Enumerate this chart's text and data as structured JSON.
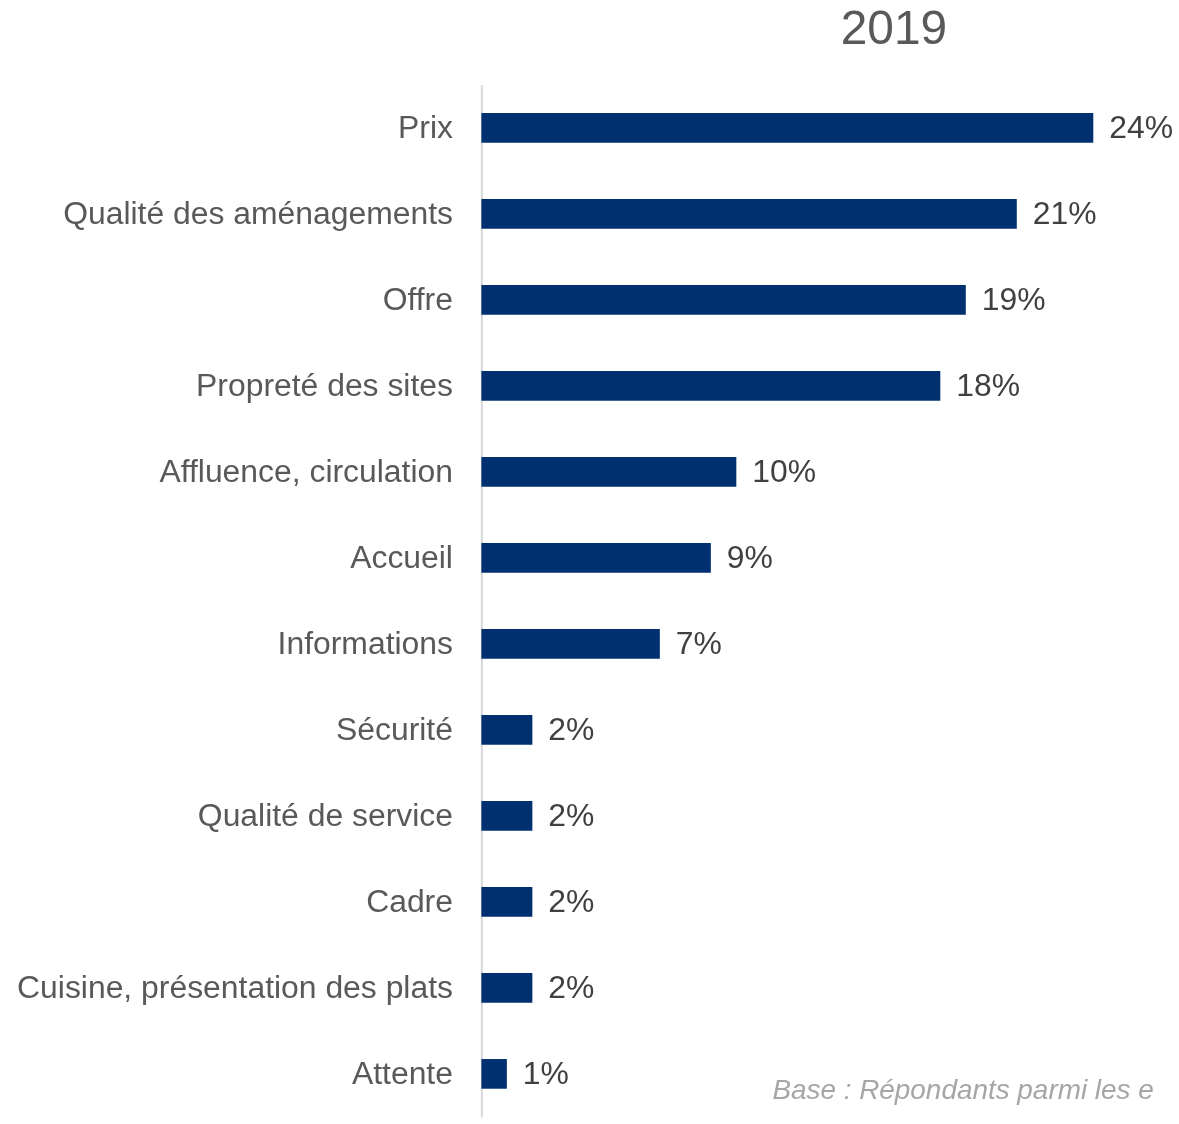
{
  "chart_data": {
    "type": "bar",
    "orientation": "horizontal",
    "title": "2019",
    "categories": [
      "Prix",
      "Qualité des aménagements",
      "Offre",
      "Propreté des sites",
      "Affluence, circulation",
      "Accueil",
      "Informations",
      "Sécurité",
      "Qualité de service",
      "Cadre",
      "Cuisine, présentation des plats",
      "Attente"
    ],
    "values": [
      24,
      21,
      19,
      18,
      10,
      9,
      7,
      2,
      2,
      2,
      2,
      1
    ],
    "value_labels": [
      "24%",
      "21%",
      "19%",
      "18%",
      "10%",
      "9%",
      "7%",
      "2%",
      "2%",
      "2%",
      "2%",
      "1%"
    ],
    "color": "#003070",
    "annotations": [
      "Base :  Répondants parmi les e"
    ]
  }
}
